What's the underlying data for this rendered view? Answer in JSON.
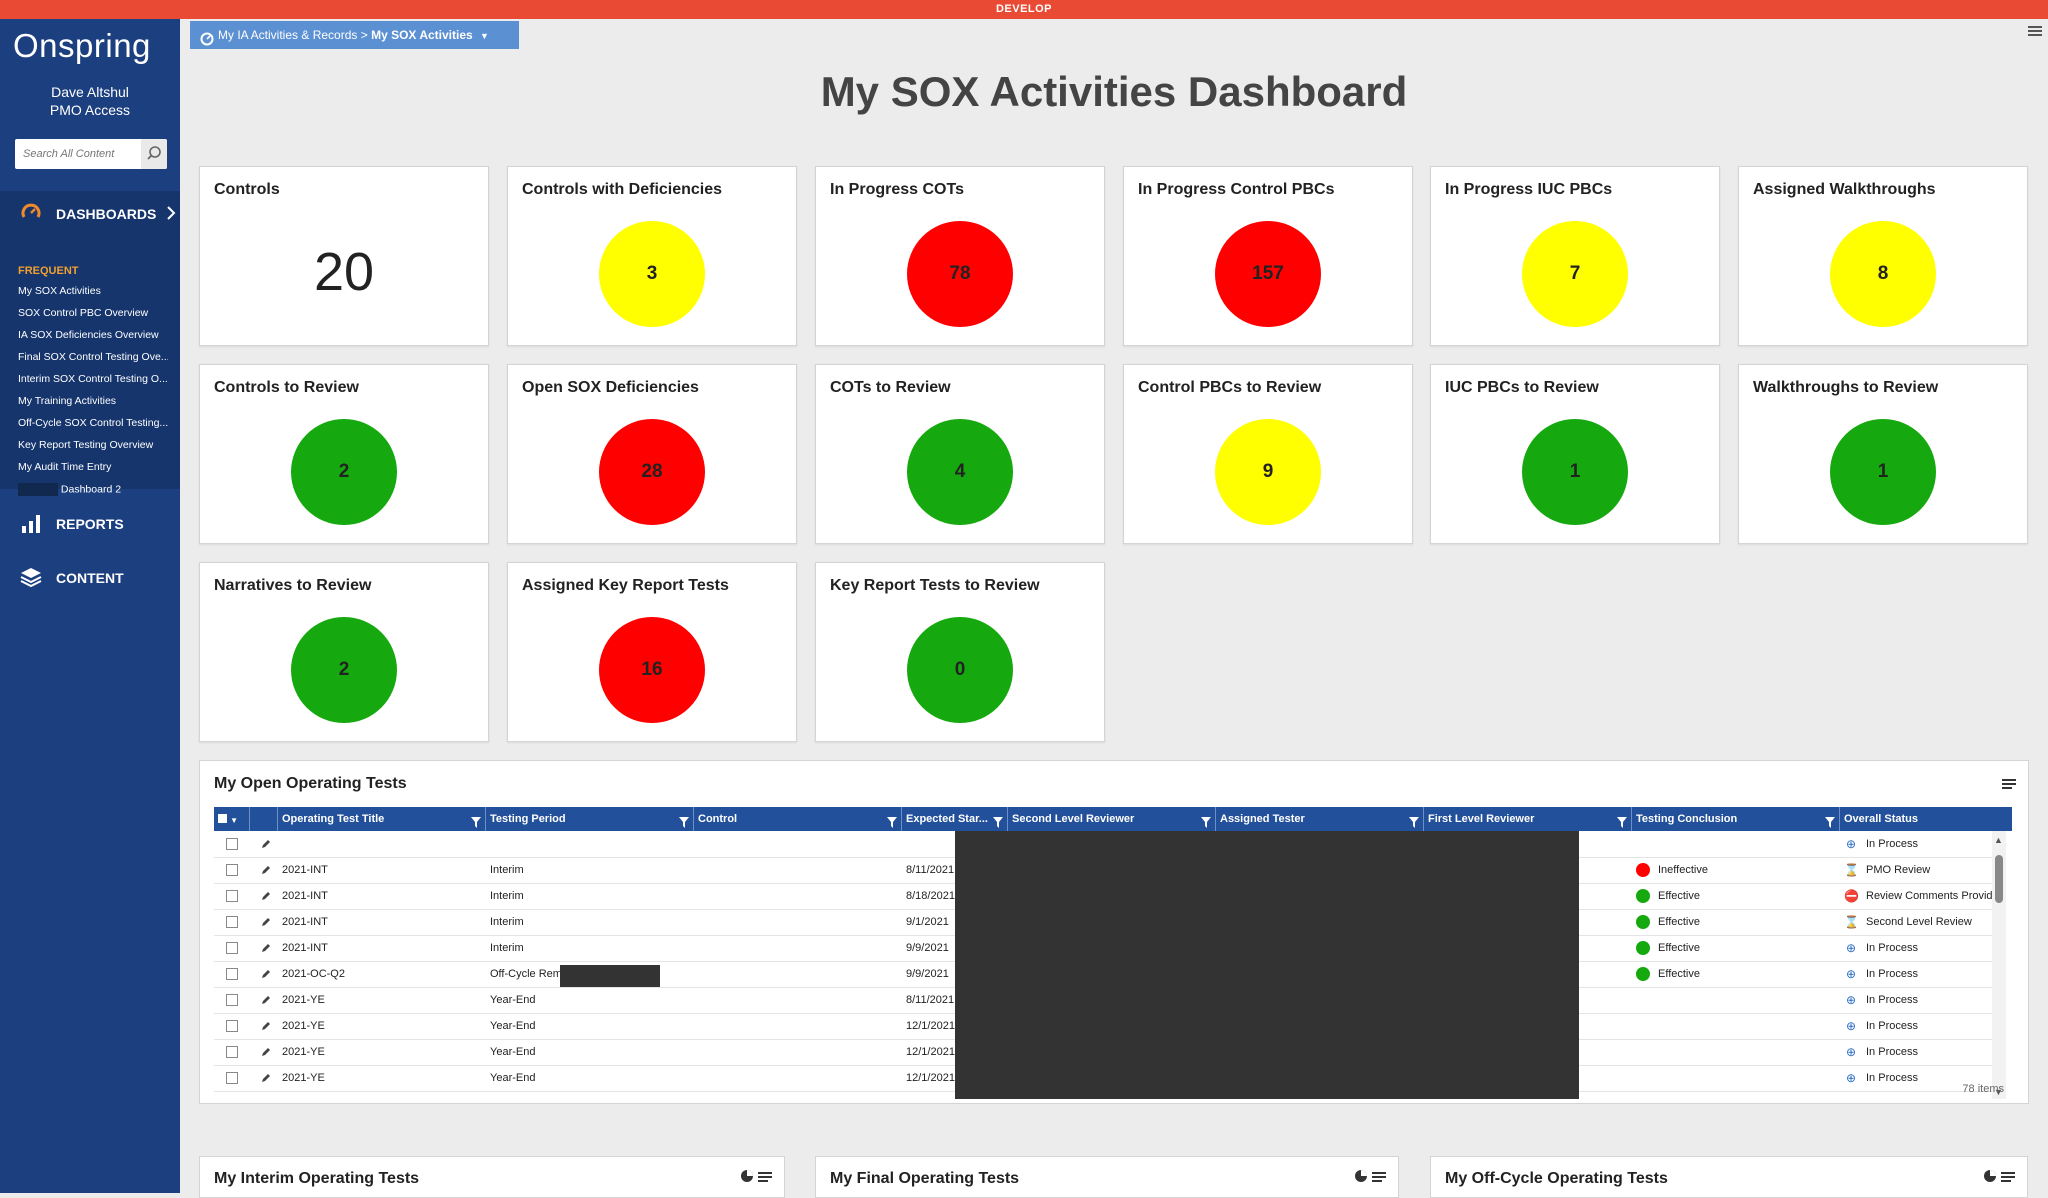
{
  "env_banner": "DEVELOP",
  "app": {
    "logo": "Onspring",
    "user_name": "Dave Altshul",
    "user_role": "PMO Access",
    "search_placeholder": "Search All Content"
  },
  "nav": {
    "dashboards": "DASHBOARDS",
    "frequent_title": "FREQUENT",
    "frequent": [
      "My SOX Activities",
      "SOX Control PBC Overview",
      "IA SOX Deficiencies Overview",
      "Final SOX Control Testing Ove...",
      "Interim SOX Control Testing O...",
      "My Training Activities",
      "Off-Cycle SOX Control Testing...",
      "Key Report Testing Overview",
      "My Audit Time Entry",
      "Dashboard 2"
    ],
    "reports": "REPORTS",
    "content": "CONTENT"
  },
  "breadcrumb": {
    "parent": "My IA Activities & Records",
    "separator": ">",
    "current": "My SOX Activities"
  },
  "page_title": "My SOX Activities Dashboard",
  "colors": {
    "red": "#ff0000",
    "yellow": "#ffff00",
    "green": "#16a90f",
    "nav_bg": "#1c3f7f",
    "banner": "#e84a33",
    "header_blue": "#23509a"
  },
  "cards": [
    {
      "title": "Controls",
      "value": "20",
      "style": "number"
    },
    {
      "title": "Controls with Deficiencies",
      "value": "3",
      "color": "yellow"
    },
    {
      "title": "In Progress COTs",
      "value": "78",
      "color": "red"
    },
    {
      "title": "In Progress Control PBCs",
      "value": "157",
      "color": "red"
    },
    {
      "title": "In Progress IUC PBCs",
      "value": "7",
      "color": "yellow"
    },
    {
      "title": "Assigned Walkthroughs",
      "value": "8",
      "color": "yellow"
    },
    {
      "title": "Controls to Review",
      "value": "2",
      "color": "green"
    },
    {
      "title": "Open SOX Deficiencies",
      "value": "28",
      "color": "red"
    },
    {
      "title": "COTs to Review",
      "value": "4",
      "color": "green"
    },
    {
      "title": "Control PBCs to Review",
      "value": "9",
      "color": "yellow"
    },
    {
      "title": "IUC PBCs to Review",
      "value": "1",
      "color": "green"
    },
    {
      "title": "Walkthroughs to Review",
      "value": "1",
      "color": "green"
    },
    {
      "title": "Narratives to Review",
      "value": "2",
      "color": "green"
    },
    {
      "title": "Assigned Key Report Tests",
      "value": "16",
      "color": "red"
    },
    {
      "title": "Key Report Tests to Review",
      "value": "0",
      "color": "green"
    }
  ],
  "operating_tests": {
    "title": "My Open Operating Tests",
    "columns": [
      "Operating Test Title",
      "Testing Period",
      "Control",
      "Expected Star...",
      "Second Level Reviewer",
      "Assigned Tester",
      "First Level Reviewer",
      "Testing Conclusion",
      "Overall Status"
    ],
    "rows": [
      {
        "title": "",
        "period": "",
        "control": "",
        "start": "",
        "conclusion": "",
        "conclusion_color": "",
        "status": "In Process",
        "status_icon": "in-process-icon"
      },
      {
        "title": "2021-INT",
        "period": "Interim",
        "control": "",
        "start": "8/11/2021",
        "conclusion": "Ineffective",
        "conclusion_color": "red",
        "status": "PMO Review",
        "status_icon": "hourglass-icon"
      },
      {
        "title": "2021-INT",
        "period": "Interim",
        "control": "",
        "start": "8/18/2021",
        "conclusion": "Effective",
        "conclusion_color": "green",
        "status": "Review Comments Provided",
        "status_icon": "no-entry-icon"
      },
      {
        "title": "2021-INT",
        "period": "Interim",
        "control": "",
        "start": "9/1/2021",
        "conclusion": "Effective",
        "conclusion_color": "green",
        "status": "Second Level Review",
        "status_icon": "hourglass-icon"
      },
      {
        "title": "2021-INT",
        "period": "Interim",
        "control": "",
        "start": "9/9/2021",
        "conclusion": "Effective",
        "conclusion_color": "green",
        "status": "In Process",
        "status_icon": "in-process-icon"
      },
      {
        "title": "2021-OC-Q2",
        "period": "Off-Cycle Remediation",
        "control": "",
        "start": "9/9/2021",
        "conclusion": "Effective",
        "conclusion_color": "green",
        "status": "In Process",
        "status_icon": "in-process-icon"
      },
      {
        "title": "2021-YE",
        "period": "Year-End",
        "control": "",
        "start": "8/11/2021",
        "conclusion": "",
        "conclusion_color": "",
        "status": "In Process",
        "status_icon": "in-process-icon"
      },
      {
        "title": "2021-YE",
        "period": "Year-End",
        "control": "",
        "start": "12/1/2021",
        "conclusion": "",
        "conclusion_color": "",
        "status": "In Process",
        "status_icon": "in-process-icon"
      },
      {
        "title": "2021-YE",
        "period": "Year-End",
        "control": "",
        "start": "12/1/2021",
        "conclusion": "",
        "conclusion_color": "",
        "status": "In Process",
        "status_icon": "in-process-icon"
      },
      {
        "title": "2021-YE",
        "period": "Year-End",
        "control": "",
        "start": "12/1/2021",
        "conclusion": "",
        "conclusion_color": "",
        "status": "In Process",
        "status_icon": "in-process-icon"
      }
    ],
    "item_count": "78 items"
  },
  "bottom_panels": [
    {
      "title": "My Interim Operating Tests"
    },
    {
      "title": "My Final Operating Tests"
    },
    {
      "title": "My Off-Cycle Operating Tests"
    }
  ]
}
